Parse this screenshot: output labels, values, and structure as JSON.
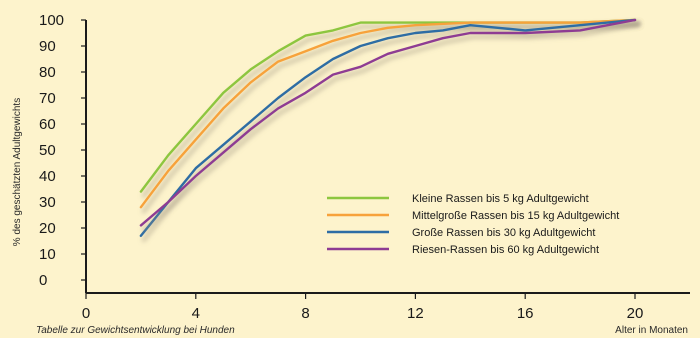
{
  "chart_data": {
    "type": "line",
    "title": "",
    "caption": "Tabelle zur Gewichtsentwicklung bei Hunden",
    "xlabel": "Alter in Monaten",
    "ylabel": "% des geschätzten Adultgewichts",
    "xlim": [
      0,
      22
    ],
    "ylim": [
      0,
      100
    ],
    "x_ticks": [
      0,
      4,
      8,
      12,
      16,
      20
    ],
    "y_ticks": [
      0,
      10,
      20,
      30,
      40,
      50,
      60,
      70,
      80,
      90,
      100
    ],
    "grid": false,
    "legend_position": "lower-right",
    "series": [
      {
        "name": "Kleine Rassen bis 5 kg Adultgewicht",
        "color": "#8dc63f",
        "points": [
          [
            2,
            34
          ],
          [
            3,
            48
          ],
          [
            4,
            60
          ],
          [
            5,
            72
          ],
          [
            6,
            81
          ],
          [
            7,
            88
          ],
          [
            8,
            94
          ],
          [
            9,
            96
          ],
          [
            10,
            99
          ],
          [
            11,
            99
          ],
          [
            12,
            99
          ],
          [
            14,
            99
          ],
          [
            16,
            99
          ],
          [
            18,
            99
          ],
          [
            20,
            100
          ]
        ]
      },
      {
        "name": "Mittelgroße Rassen bis 15 kg Adultgewicht",
        "color": "#f7a23b",
        "points": [
          [
            2,
            28
          ],
          [
            3,
            42
          ],
          [
            4,
            54
          ],
          [
            5,
            66
          ],
          [
            6,
            76
          ],
          [
            7,
            84
          ],
          [
            8,
            88
          ],
          [
            9,
            92
          ],
          [
            10,
            95
          ],
          [
            11,
            97
          ],
          [
            12,
            98
          ],
          [
            14,
            99
          ],
          [
            16,
            99
          ],
          [
            18,
            99
          ],
          [
            20,
            100
          ]
        ]
      },
      {
        "name": "Große Rassen bis 30 kg Adultgewicht",
        "color": "#2e6da4",
        "points": [
          [
            2,
            17
          ],
          [
            3,
            30
          ],
          [
            4,
            43
          ],
          [
            5,
            52
          ],
          [
            6,
            61
          ],
          [
            7,
            70
          ],
          [
            8,
            78
          ],
          [
            9,
            85
          ],
          [
            10,
            90
          ],
          [
            11,
            93
          ],
          [
            12,
            95
          ],
          [
            13,
            96
          ],
          [
            14,
            98
          ],
          [
            15,
            97
          ],
          [
            16,
            96
          ],
          [
            17,
            97
          ],
          [
            18,
            98
          ],
          [
            19,
            99
          ],
          [
            20,
            100
          ]
        ]
      },
      {
        "name": "Riesen-Rassen bis 60 kg Adultgewicht",
        "color": "#8e3c93",
        "points": [
          [
            2,
            21
          ],
          [
            3,
            30
          ],
          [
            4,
            40
          ],
          [
            5,
            49
          ],
          [
            6,
            58
          ],
          [
            7,
            66
          ],
          [
            8,
            72
          ],
          [
            9,
            79
          ],
          [
            10,
            82
          ],
          [
            11,
            87
          ],
          [
            12,
            90
          ],
          [
            13,
            93
          ],
          [
            14,
            95
          ],
          [
            16,
            95
          ],
          [
            18,
            96
          ],
          [
            19,
            98
          ],
          [
            20,
            100
          ]
        ]
      }
    ]
  }
}
